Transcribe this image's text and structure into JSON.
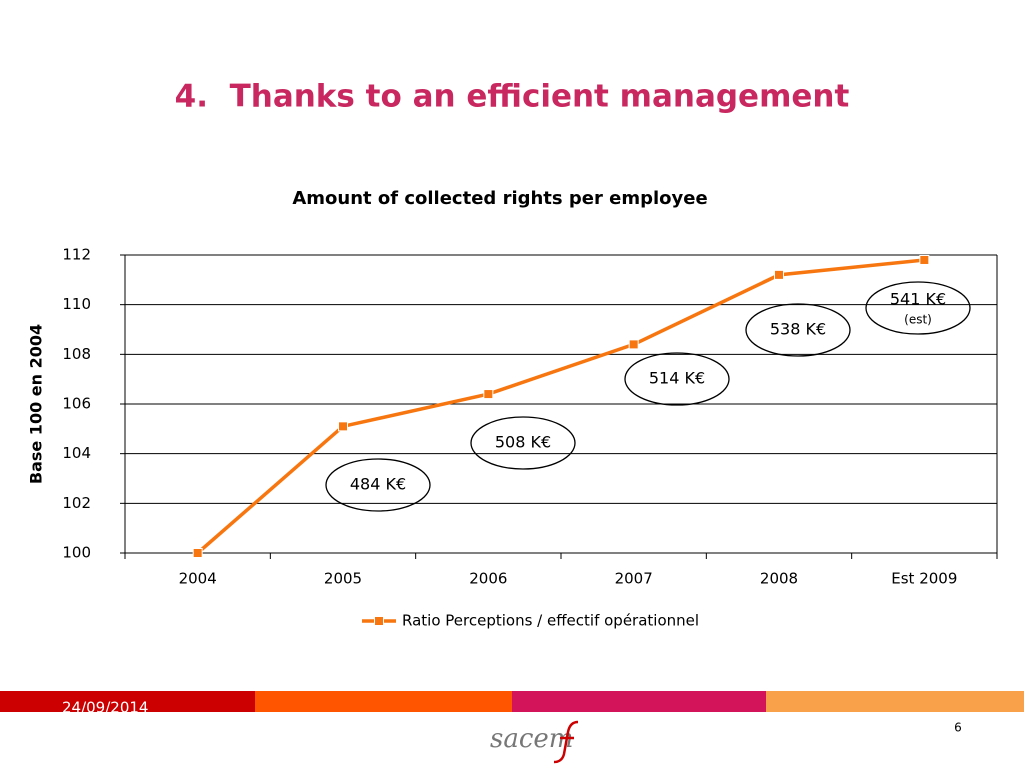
{
  "slide": {
    "title": "4.  Thanks to an efficient management",
    "date": "24/09/2014",
    "page": "6",
    "logo": "sacem"
  },
  "chart_data": {
    "type": "line",
    "title": "Amount of collected rights per employee",
    "y_label": "Base 100 en 2004",
    "categories": [
      "2004",
      "2005",
      "2006",
      "2007",
      "2008",
      "Est 2009"
    ],
    "series": [
      {
        "name": "Ratio Perceptions  / effectif opérationnel",
        "color": "#f7760f",
        "values": [
          100,
          105.1,
          106.4,
          108.4,
          111.2,
          111.8
        ]
      }
    ],
    "ylim": [
      100,
      112
    ],
    "yticks": [
      100,
      102,
      104,
      106,
      108,
      110,
      112
    ],
    "grid": true,
    "legend": "bottom",
    "annotations": [
      {
        "text": "484 K€"
      },
      {
        "text": "508 K€"
      },
      {
        "text": "514 K€"
      },
      {
        "text": "538 K€"
      },
      {
        "text": "541 K€",
        "note": "(est)"
      }
    ]
  }
}
